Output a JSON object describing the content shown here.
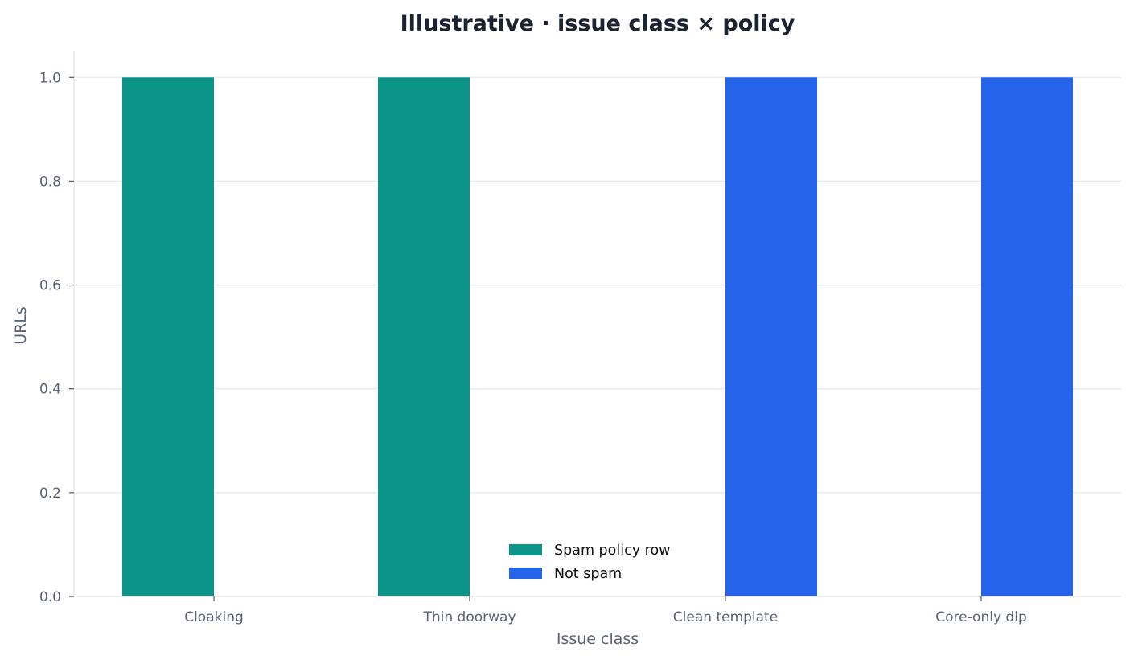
{
  "chart_data": {
    "type": "bar",
    "title": "Illustrative · issue class × policy",
    "xlabel": "Issue class",
    "ylabel": "URLs",
    "categories": [
      "Cloaking",
      "Thin doorway",
      "Clean template",
      "Core-only dip"
    ],
    "series": [
      {
        "name": "Spam policy row",
        "color": "#0d9488",
        "values": [
          1,
          1,
          0,
          0
        ]
      },
      {
        "name": "Not spam",
        "color": "#2563eb",
        "values": [
          0,
          0,
          1,
          1
        ]
      }
    ],
    "ylim": [
      0,
      1.05
    ],
    "yticks": [
      "0.0",
      "0.2",
      "0.4",
      "0.6",
      "0.8",
      "1.0"
    ],
    "grid": true,
    "legend_position": "lower-center"
  }
}
